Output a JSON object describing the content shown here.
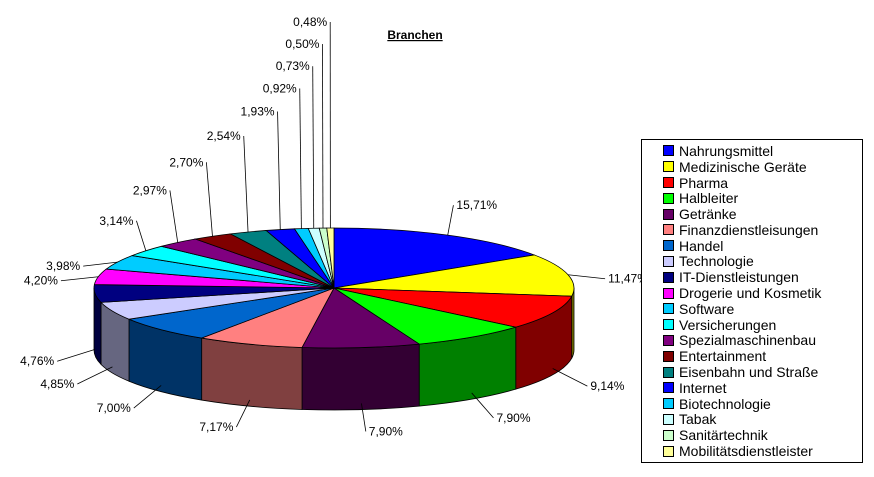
{
  "chart_data": {
    "type": "pie",
    "title": "Branchen",
    "slices": [
      {
        "label": "Nahrungsmittel",
        "value": 15.71,
        "value_label": "15,71%",
        "color": "#0000FF"
      },
      {
        "label": "Medizinische Geräte",
        "value": 11.47,
        "value_label": "11,47%",
        "color": "#FFFF00"
      },
      {
        "label": "Pharma",
        "value": 9.14,
        "value_label": "9,14%",
        "color": "#FF0000"
      },
      {
        "label": "Halbleiter",
        "value": 7.9,
        "value_label": "7,90%",
        "color": "#00FF00"
      },
      {
        "label": "Getränke",
        "value": 7.9,
        "value_label": "7,90%",
        "color": "#660066"
      },
      {
        "label": "Finanzdienstleisungen",
        "value": 7.17,
        "value_label": "7,17%",
        "color": "#FF8080"
      },
      {
        "label": "Handel",
        "value": 7.0,
        "value_label": "7,00%",
        "color": "#0066CC"
      },
      {
        "label": "Technologie",
        "value": 4.85,
        "value_label": "4,85%",
        "color": "#CCCCFF"
      },
      {
        "label": "IT-Dienstleistungen",
        "value": 4.76,
        "value_label": "4,76%",
        "color": "#000080"
      },
      {
        "label": "Drogerie und Kosmetik",
        "value": 4.2,
        "value_label": "4,20%",
        "color": "#FF00FF"
      },
      {
        "label": "Software",
        "value": 3.98,
        "value_label": "3,98%",
        "color": "#00CCFF"
      },
      {
        "label": "Versicherungen",
        "value": 3.14,
        "value_label": "3,14%",
        "color": "#00FFFF"
      },
      {
        "label": "Spezialmaschinenbau",
        "value": 2.97,
        "value_label": "2,97%",
        "color": "#800080"
      },
      {
        "label": "Entertainment",
        "value": 2.7,
        "value_label": "2,70%",
        "color": "#800000"
      },
      {
        "label": "Eisenbahn und Straße",
        "value": 2.54,
        "value_label": "2,54%",
        "color": "#008080"
      },
      {
        "label": "Internet",
        "value": 1.93,
        "value_label": "1,93%",
        "color": "#0000FF"
      },
      {
        "label": "Biotechnologie",
        "value": 0.92,
        "value_label": "0,92%",
        "color": "#00CCFF"
      },
      {
        "label": "Tabak",
        "value": 0.73,
        "value_label": "0,73%",
        "color": "#CCFFFF"
      },
      {
        "label": "Sanitärtechnik",
        "value": 0.5,
        "value_label": "0,50%",
        "color": "#CCFFCC"
      },
      {
        "label": "Mobilitätsdienstleister",
        "value": 0.48,
        "value_label": "0,48%",
        "color": "#FFFF99"
      }
    ],
    "legend_position": "right",
    "style": "3d-pie"
  }
}
